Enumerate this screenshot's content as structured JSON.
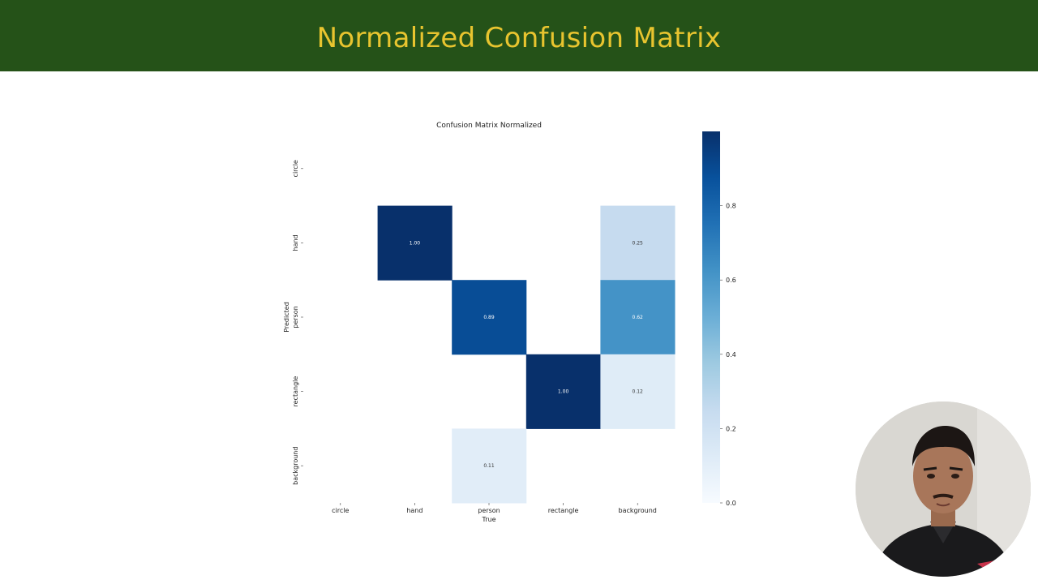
{
  "slide": {
    "title": "Normalized Confusion Matrix"
  },
  "chart_data": {
    "type": "heatmap",
    "title": "Confusion Matrix Normalized",
    "xlabel": "True",
    "ylabel": "Predicted",
    "x_categories": [
      "circle",
      "hand",
      "person",
      "rectangle",
      "background"
    ],
    "y_categories": [
      "circle",
      "hand",
      "person",
      "rectangle",
      "background"
    ],
    "values": [
      [
        null,
        null,
        null,
        null,
        null
      ],
      [
        null,
        1.0,
        null,
        null,
        0.25
      ],
      [
        null,
        null,
        0.89,
        null,
        0.62
      ],
      [
        null,
        null,
        null,
        1.0,
        0.12
      ],
      [
        null,
        null,
        0.11,
        null,
        null
      ]
    ],
    "value_format": "2 decimals",
    "colormap": "Blues",
    "colorbar": {
      "range": [
        0.0,
        1.0
      ],
      "ticks": [
        "0.0",
        "0.2",
        "0.4",
        "0.6",
        "0.8"
      ]
    },
    "colors": {
      "low": "#f7fbff",
      "high": "#08306b"
    }
  }
}
